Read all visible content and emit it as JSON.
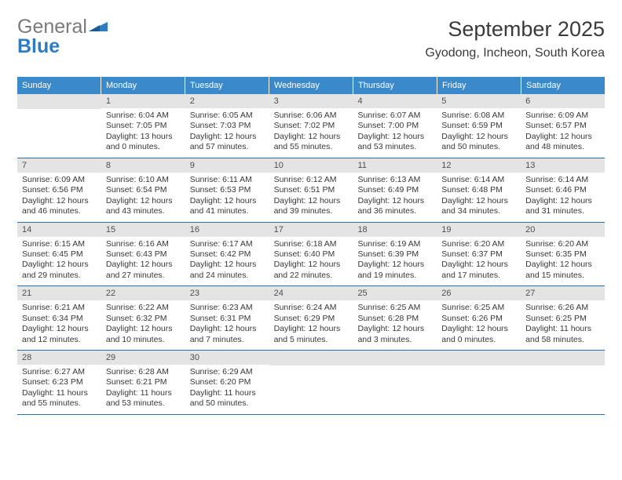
{
  "brand": {
    "part1": "General",
    "part2": "Blue"
  },
  "title": "September 2025",
  "location": "Gyodong, Incheon, South Korea",
  "colors": {
    "header_bg": "#3a8acb",
    "header_text": "#ffffff",
    "daynum_bg": "#e4e4e4",
    "daynum_text": "#4f4f4f",
    "body_text": "#373737",
    "row_border": "#2e6fa6",
    "brand_gray": "#7a7a7a",
    "brand_blue": "#2e7cc0",
    "page_bg": "#ffffff"
  },
  "weekdays": [
    "Sunday",
    "Monday",
    "Tuesday",
    "Wednesday",
    "Thursday",
    "Friday",
    "Saturday"
  ],
  "weeks": [
    [
      {
        "num": "",
        "sunrise": "",
        "sunset": "",
        "daylight": ""
      },
      {
        "num": "1",
        "sunrise": "Sunrise: 6:04 AM",
        "sunset": "Sunset: 7:05 PM",
        "daylight": "Daylight: 13 hours and 0 minutes."
      },
      {
        "num": "2",
        "sunrise": "Sunrise: 6:05 AM",
        "sunset": "Sunset: 7:03 PM",
        "daylight": "Daylight: 12 hours and 57 minutes."
      },
      {
        "num": "3",
        "sunrise": "Sunrise: 6:06 AM",
        "sunset": "Sunset: 7:02 PM",
        "daylight": "Daylight: 12 hours and 55 minutes."
      },
      {
        "num": "4",
        "sunrise": "Sunrise: 6:07 AM",
        "sunset": "Sunset: 7:00 PM",
        "daylight": "Daylight: 12 hours and 53 minutes."
      },
      {
        "num": "5",
        "sunrise": "Sunrise: 6:08 AM",
        "sunset": "Sunset: 6:59 PM",
        "daylight": "Daylight: 12 hours and 50 minutes."
      },
      {
        "num": "6",
        "sunrise": "Sunrise: 6:09 AM",
        "sunset": "Sunset: 6:57 PM",
        "daylight": "Daylight: 12 hours and 48 minutes."
      }
    ],
    [
      {
        "num": "7",
        "sunrise": "Sunrise: 6:09 AM",
        "sunset": "Sunset: 6:56 PM",
        "daylight": "Daylight: 12 hours and 46 minutes."
      },
      {
        "num": "8",
        "sunrise": "Sunrise: 6:10 AM",
        "sunset": "Sunset: 6:54 PM",
        "daylight": "Daylight: 12 hours and 43 minutes."
      },
      {
        "num": "9",
        "sunrise": "Sunrise: 6:11 AM",
        "sunset": "Sunset: 6:53 PM",
        "daylight": "Daylight: 12 hours and 41 minutes."
      },
      {
        "num": "10",
        "sunrise": "Sunrise: 6:12 AM",
        "sunset": "Sunset: 6:51 PM",
        "daylight": "Daylight: 12 hours and 39 minutes."
      },
      {
        "num": "11",
        "sunrise": "Sunrise: 6:13 AM",
        "sunset": "Sunset: 6:49 PM",
        "daylight": "Daylight: 12 hours and 36 minutes."
      },
      {
        "num": "12",
        "sunrise": "Sunrise: 6:14 AM",
        "sunset": "Sunset: 6:48 PM",
        "daylight": "Daylight: 12 hours and 34 minutes."
      },
      {
        "num": "13",
        "sunrise": "Sunrise: 6:14 AM",
        "sunset": "Sunset: 6:46 PM",
        "daylight": "Daylight: 12 hours and 31 minutes."
      }
    ],
    [
      {
        "num": "14",
        "sunrise": "Sunrise: 6:15 AM",
        "sunset": "Sunset: 6:45 PM",
        "daylight": "Daylight: 12 hours and 29 minutes."
      },
      {
        "num": "15",
        "sunrise": "Sunrise: 6:16 AM",
        "sunset": "Sunset: 6:43 PM",
        "daylight": "Daylight: 12 hours and 27 minutes."
      },
      {
        "num": "16",
        "sunrise": "Sunrise: 6:17 AM",
        "sunset": "Sunset: 6:42 PM",
        "daylight": "Daylight: 12 hours and 24 minutes."
      },
      {
        "num": "17",
        "sunrise": "Sunrise: 6:18 AM",
        "sunset": "Sunset: 6:40 PM",
        "daylight": "Daylight: 12 hours and 22 minutes."
      },
      {
        "num": "18",
        "sunrise": "Sunrise: 6:19 AM",
        "sunset": "Sunset: 6:39 PM",
        "daylight": "Daylight: 12 hours and 19 minutes."
      },
      {
        "num": "19",
        "sunrise": "Sunrise: 6:20 AM",
        "sunset": "Sunset: 6:37 PM",
        "daylight": "Daylight: 12 hours and 17 minutes."
      },
      {
        "num": "20",
        "sunrise": "Sunrise: 6:20 AM",
        "sunset": "Sunset: 6:35 PM",
        "daylight": "Daylight: 12 hours and 15 minutes."
      }
    ],
    [
      {
        "num": "21",
        "sunrise": "Sunrise: 6:21 AM",
        "sunset": "Sunset: 6:34 PM",
        "daylight": "Daylight: 12 hours and 12 minutes."
      },
      {
        "num": "22",
        "sunrise": "Sunrise: 6:22 AM",
        "sunset": "Sunset: 6:32 PM",
        "daylight": "Daylight: 12 hours and 10 minutes."
      },
      {
        "num": "23",
        "sunrise": "Sunrise: 6:23 AM",
        "sunset": "Sunset: 6:31 PM",
        "daylight": "Daylight: 12 hours and 7 minutes."
      },
      {
        "num": "24",
        "sunrise": "Sunrise: 6:24 AM",
        "sunset": "Sunset: 6:29 PM",
        "daylight": "Daylight: 12 hours and 5 minutes."
      },
      {
        "num": "25",
        "sunrise": "Sunrise: 6:25 AM",
        "sunset": "Sunset: 6:28 PM",
        "daylight": "Daylight: 12 hours and 3 minutes."
      },
      {
        "num": "26",
        "sunrise": "Sunrise: 6:25 AM",
        "sunset": "Sunset: 6:26 PM",
        "daylight": "Daylight: 12 hours and 0 minutes."
      },
      {
        "num": "27",
        "sunrise": "Sunrise: 6:26 AM",
        "sunset": "Sunset: 6:25 PM",
        "daylight": "Daylight: 11 hours and 58 minutes."
      }
    ],
    [
      {
        "num": "28",
        "sunrise": "Sunrise: 6:27 AM",
        "sunset": "Sunset: 6:23 PM",
        "daylight": "Daylight: 11 hours and 55 minutes."
      },
      {
        "num": "29",
        "sunrise": "Sunrise: 6:28 AM",
        "sunset": "Sunset: 6:21 PM",
        "daylight": "Daylight: 11 hours and 53 minutes."
      },
      {
        "num": "30",
        "sunrise": "Sunrise: 6:29 AM",
        "sunset": "Sunset: 6:20 PM",
        "daylight": "Daylight: 11 hours and 50 minutes."
      },
      {
        "num": "",
        "sunrise": "",
        "sunset": "",
        "daylight": ""
      },
      {
        "num": "",
        "sunrise": "",
        "sunset": "",
        "daylight": ""
      },
      {
        "num": "",
        "sunrise": "",
        "sunset": "",
        "daylight": ""
      },
      {
        "num": "",
        "sunrise": "",
        "sunset": "",
        "daylight": ""
      }
    ]
  ]
}
